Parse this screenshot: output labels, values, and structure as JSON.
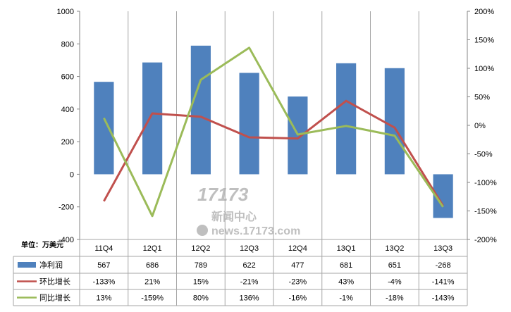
{
  "chart_data": {
    "type": "bar+line",
    "unit_label": "单位：万美元",
    "categories": [
      "11Q4",
      "12Q1",
      "12Q2",
      "12Q3",
      "12Q4",
      "13Q1",
      "13Q2",
      "13Q3"
    ],
    "series": [
      {
        "name": "净利润",
        "type": "bar",
        "axis": "left",
        "values": [
          567,
          686,
          789,
          622,
          477,
          681,
          651,
          -268
        ],
        "labels": [
          "567",
          "686",
          "789",
          "622",
          "477",
          "681",
          "651",
          "-268"
        ],
        "color": "#4f81bd"
      },
      {
        "name": "环比增长",
        "type": "line",
        "axis": "right",
        "values": [
          -133,
          21,
          15,
          -21,
          -23,
          43,
          -4,
          -141
        ],
        "labels": [
          "-133%",
          "21%",
          "15%",
          "-21%",
          "-23%",
          "43%",
          "-4%",
          "-141%"
        ],
        "color": "#c0504d"
      },
      {
        "name": "同比增长",
        "type": "line",
        "axis": "right",
        "values": [
          13,
          -159,
          80,
          136,
          -16,
          -1,
          -18,
          -143
        ],
        "labels": [
          "13%",
          "-159%",
          "80%",
          "136%",
          "-16%",
          "-1%",
          "-18%",
          "-143%"
        ],
        "color": "#9bbb59"
      }
    ],
    "left_axis": {
      "ylim": [
        -400,
        1000
      ],
      "ticks": [
        "1000",
        "800",
        "600",
        "400",
        "200",
        "0",
        "-200",
        "-400"
      ]
    },
    "right_axis": {
      "ylim": [
        -200,
        200
      ],
      "ticks": [
        "200%",
        "150%",
        "100%",
        "50%",
        "0%",
        "-50%",
        "-100%",
        "-150%",
        "-200%"
      ]
    },
    "grid": "vertical",
    "legend": "data-table"
  },
  "watermark": {
    "brand": "17173",
    "cn": "新闻中心",
    "url": "news.17173.com"
  }
}
